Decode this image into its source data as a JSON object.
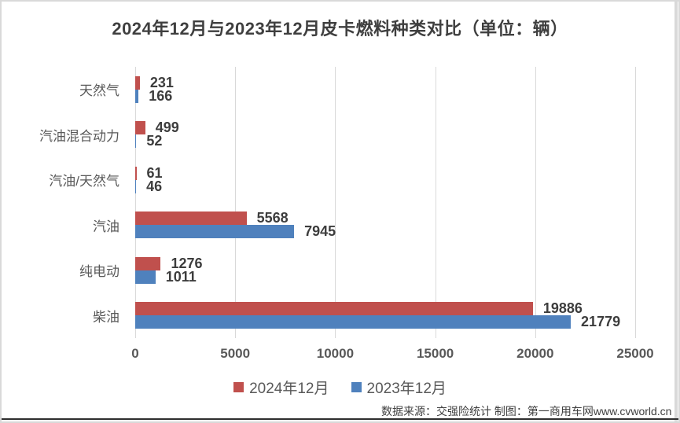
{
  "title": "2024年12月与2023年12月皮卡燃料种类对比（单位：辆）",
  "chart_data": {
    "type": "bar",
    "orientation": "horizontal",
    "title": "2024年12月与2023年12月皮卡燃料种类对比（单位：辆）",
    "categories": [
      "天然气",
      "汽油混合动力",
      "汽油/天然气",
      "汽油",
      "纯电动",
      "柴油"
    ],
    "series": [
      {
        "name": "2024年12月",
        "color": "#C0504D",
        "values": [
          231,
          499,
          61,
          5568,
          1276,
          19886
        ]
      },
      {
        "name": "2023年12月",
        "color": "#4F81BD",
        "values": [
          166,
          52,
          46,
          7945,
          1011,
          21779
        ]
      }
    ],
    "xlim": [
      0,
      25000
    ],
    "x_ticks": [
      0,
      5000,
      10000,
      15000,
      20000,
      25000
    ],
    "grid": "vertical-only",
    "legend_position": "bottom",
    "data_labels": "outside-end"
  },
  "colors": {
    "series_2024": "#C0504D",
    "series_2023": "#4F81BD",
    "gridline": "#d9d9d9",
    "text_muted": "#595959",
    "text_dark": "#3f3f3f"
  },
  "footer": {
    "source": "数据来源：交强险统计 制图：第一商用车网www.cvworld.cn"
  }
}
